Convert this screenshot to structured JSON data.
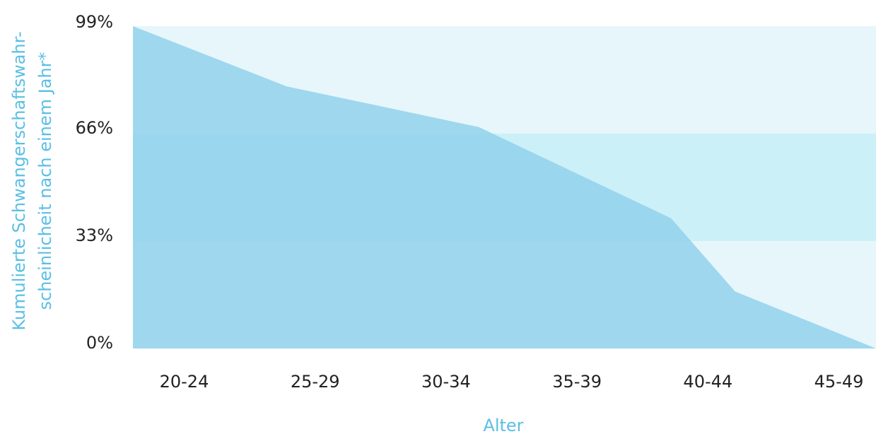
{
  "colors": {
    "band_outer": "#e6f6fa",
    "band_middle": "#ccf0f8",
    "area_fill": "#8fd0ec",
    "axis_title": "#5bbfe4",
    "tick_text": "#222222"
  },
  "chart_data": {
    "type": "area",
    "title": "",
    "xlabel": "Alter",
    "ylabel_lines": [
      "Kumulierte Schwangerschaftswahr-",
      "scheinlicheit nach einem Jahr*"
    ],
    "y_ticks": [
      {
        "value": 0,
        "label": "0%"
      },
      {
        "value": 33,
        "label": "33%"
      },
      {
        "value": 66,
        "label": "66%"
      },
      {
        "value": 99,
        "label": "99%"
      }
    ],
    "ylim": [
      0,
      99
    ],
    "x_ticks": [
      {
        "value": 22,
        "label": "20-24"
      },
      {
        "value": 27,
        "label": "25-29"
      },
      {
        "value": 32,
        "label": "30-34"
      },
      {
        "value": 37,
        "label": "35-39"
      },
      {
        "value": 42,
        "label": "40-44"
      },
      {
        "value": 47,
        "label": "45-49"
      }
    ],
    "xlim": [
      20,
      49
    ],
    "bands": [
      {
        "from": 0,
        "to": 33,
        "color": "#e6f6fa"
      },
      {
        "from": 33,
        "to": 66,
        "color": "#ccf0f8"
      },
      {
        "from": 66,
        "to": 99,
        "color": "#e6f6fa"
      }
    ],
    "x": [
      20,
      26,
      33.5,
      41,
      43.5,
      49
    ],
    "values": [
      99,
      80.5,
      68,
      40,
      17.5,
      0
    ],
    "grid": false,
    "legend": "none"
  }
}
